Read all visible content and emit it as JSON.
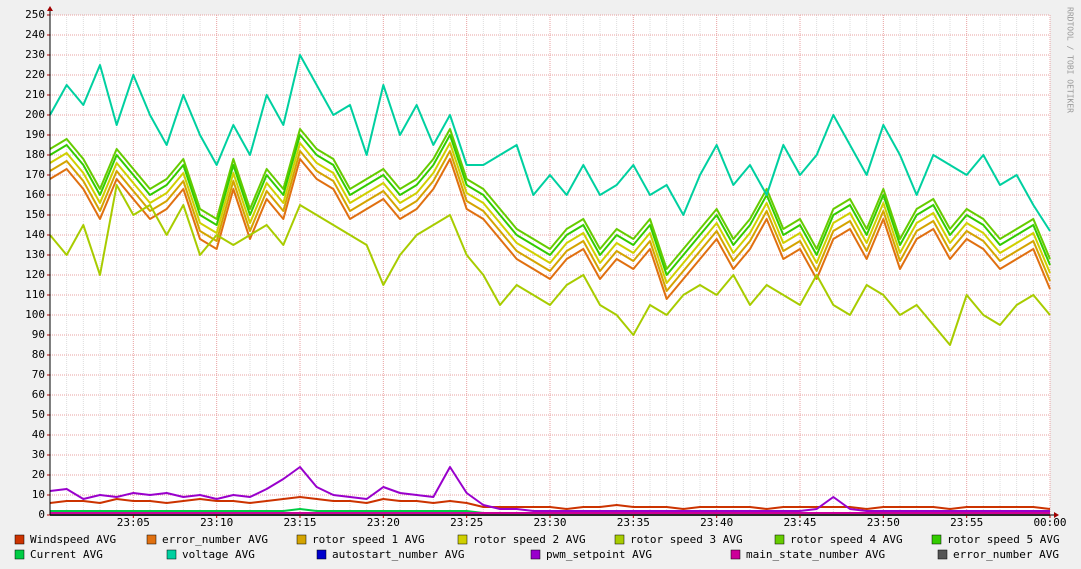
{
  "chart_data": {
    "type": "line",
    "watermark": "RRDTOOL / TOBI OETIKER",
    "categories": [
      null,
      null,
      null,
      null,
      null,
      "23:05",
      null,
      null,
      null,
      null,
      "23:10",
      null,
      null,
      null,
      null,
      "23:15",
      null,
      null,
      null,
      null,
      "23:20",
      null,
      null,
      null,
      null,
      "23:25",
      null,
      null,
      null,
      null,
      "23:30",
      null,
      null,
      null,
      null,
      "23:35",
      null,
      null,
      null,
      null,
      "23:40",
      null,
      null,
      null,
      null,
      "23:45",
      null,
      null,
      null,
      null,
      "23:50",
      null,
      null,
      null,
      null,
      "23:55",
      null,
      null,
      null,
      null,
      "00:00"
    ],
    "ylim": [
      0,
      250
    ],
    "yticks": [
      0,
      10,
      20,
      30,
      40,
      50,
      60,
      70,
      80,
      90,
      100,
      110,
      120,
      130,
      140,
      150,
      160,
      170,
      180,
      190,
      200,
      210,
      220,
      230,
      240,
      250
    ],
    "grid": true,
    "series": [
      {
        "name": "Windspeed AVG",
        "color": "#cc3300",
        "values": [
          6,
          7,
          7,
          6,
          8,
          7,
          7,
          6,
          7,
          8,
          7,
          7,
          6,
          7,
          8,
          9,
          8,
          7,
          7,
          6,
          8,
          7,
          7,
          6,
          7,
          6,
          4,
          4,
          4,
          4,
          4,
          3,
          4,
          4,
          5,
          4,
          4,
          4,
          3,
          4,
          4,
          4,
          4,
          3,
          4,
          4,
          4,
          4,
          4,
          3,
          4,
          4,
          4,
          4,
          3,
          4,
          4,
          4,
          4,
          4,
          3
        ]
      },
      {
        "name": "error_number AVG",
        "color": "#e07010",
        "values": [
          168,
          173,
          163,
          148,
          168,
          158,
          148,
          153,
          163,
          138,
          133,
          163,
          138,
          158,
          148,
          178,
          168,
          163,
          148,
          153,
          158,
          148,
          153,
          163,
          178,
          153,
          148,
          138,
          128,
          123,
          118,
          128,
          133,
          118,
          128,
          123,
          133,
          108,
          118,
          128,
          138,
          123,
          133,
          148,
          128,
          133,
          118,
          138,
          143,
          128,
          148,
          123,
          138,
          143,
          128,
          138,
          133,
          123,
          128,
          133,
          113
        ]
      },
      {
        "name": "rotor speed 1 AVG",
        "color": "#d4a400",
        "values": [
          172,
          177,
          167,
          152,
          172,
          162,
          152,
          157,
          167,
          142,
          137,
          167,
          142,
          162,
          152,
          182,
          172,
          167,
          152,
          157,
          162,
          152,
          157,
          167,
          182,
          157,
          152,
          142,
          132,
          127,
          122,
          132,
          137,
          122,
          132,
          127,
          137,
          112,
          122,
          132,
          142,
          127,
          137,
          152,
          132,
          137,
          122,
          142,
          147,
          132,
          152,
          127,
          142,
          147,
          132,
          142,
          137,
          127,
          132,
          137,
          117
        ]
      },
      {
        "name": "rotor speed 2 AVG",
        "color": "#d0d000",
        "values": [
          176,
          181,
          171,
          156,
          176,
          166,
          156,
          161,
          171,
          146,
          141,
          171,
          146,
          166,
          156,
          186,
          176,
          171,
          156,
          161,
          166,
          156,
          161,
          171,
          186,
          161,
          156,
          146,
          136,
          131,
          126,
          136,
          141,
          126,
          136,
          131,
          141,
          116,
          126,
          136,
          146,
          131,
          141,
          156,
          136,
          141,
          126,
          146,
          151,
          136,
          156,
          131,
          146,
          151,
          136,
          146,
          141,
          131,
          136,
          141,
          121
        ]
      },
      {
        "name": "rotor speed 3 AVG",
        "color": "#a8cc00",
        "values": [
          140,
          130,
          145,
          120,
          165,
          150,
          155,
          140,
          155,
          130,
          140,
          135,
          140,
          145,
          135,
          155,
          150,
          145,
          140,
          135,
          115,
          130,
          140,
          145,
          150,
          130,
          120,
          105,
          115,
          110,
          105,
          115,
          120,
          105,
          100,
          90,
          105,
          100,
          110,
          115,
          110,
          120,
          105,
          115,
          110,
          105,
          120,
          105,
          100,
          115,
          110,
          100,
          105,
          95,
          85,
          110,
          100,
          95,
          105,
          110,
          100
        ]
      },
      {
        "name": "rotor speed 4 AVG",
        "color": "#66cc00",
        "values": [
          183,
          188,
          178,
          163,
          183,
          173,
          163,
          168,
          178,
          153,
          148,
          178,
          153,
          173,
          163,
          193,
          183,
          178,
          163,
          168,
          173,
          163,
          168,
          178,
          193,
          168,
          163,
          153,
          143,
          138,
          133,
          143,
          148,
          133,
          143,
          138,
          148,
          123,
          133,
          143,
          153,
          138,
          148,
          163,
          143,
          148,
          133,
          153,
          158,
          143,
          163,
          138,
          153,
          158,
          143,
          153,
          148,
          138,
          143,
          148,
          128
        ]
      },
      {
        "name": "rotor speed 5 AVG",
        "color": "#33cc00",
        "values": [
          180,
          185,
          175,
          160,
          180,
          170,
          160,
          165,
          175,
          150,
          145,
          175,
          150,
          170,
          160,
          190,
          180,
          175,
          160,
          165,
          170,
          160,
          165,
          175,
          190,
          165,
          160,
          150,
          140,
          135,
          130,
          140,
          145,
          130,
          140,
          135,
          145,
          120,
          130,
          140,
          150,
          135,
          145,
          160,
          140,
          145,
          130,
          150,
          155,
          140,
          160,
          135,
          150,
          155,
          140,
          150,
          145,
          135,
          140,
          145,
          125
        ]
      },
      {
        "name": "Current AVG",
        "color": "#00cc44",
        "values": [
          2,
          2,
          2,
          2,
          2,
          2,
          2,
          2,
          2,
          2,
          2,
          2,
          2,
          2,
          2,
          3,
          2,
          2,
          2,
          2,
          2,
          2,
          2,
          2,
          2,
          2,
          1,
          1,
          1,
          1,
          1,
          1,
          1,
          1,
          1,
          1,
          1,
          1,
          1,
          1,
          1,
          1,
          1,
          1,
          1,
          1,
          1,
          1,
          1,
          1,
          1,
          1,
          1,
          1,
          1,
          1,
          1,
          1,
          1,
          1,
          1
        ]
      },
      {
        "name": "voltage AVG",
        "color": "#00d0a0",
        "values": [
          200,
          215,
          205,
          225,
          195,
          220,
          200,
          185,
          210,
          190,
          175,
          195,
          180,
          210,
          195,
          230,
          215,
          200,
          205,
          180,
          215,
          190,
          205,
          185,
          200,
          175,
          175,
          180,
          185,
          160,
          170,
          160,
          175,
          160,
          165,
          175,
          160,
          165,
          150,
          170,
          185,
          165,
          175,
          160,
          185,
          170,
          180,
          200,
          185,
          170,
          195,
          180,
          160,
          180,
          175,
          170,
          180,
          165,
          170,
          155,
          142
        ]
      },
      {
        "name": "autostart_number AVG",
        "color": "#0000cc",
        "values": [
          0,
          0,
          0,
          0,
          0,
          0,
          0,
          0,
          0,
          0,
          0,
          0,
          0,
          0,
          0,
          0,
          0,
          0,
          0,
          0,
          0,
          0,
          0,
          0,
          0,
          0,
          0,
          0,
          0,
          0,
          0,
          0,
          0,
          0,
          0,
          0,
          0,
          0,
          0,
          0,
          0,
          0,
          0,
          0,
          0,
          0,
          0,
          0,
          0,
          0,
          0,
          0,
          0,
          0,
          0,
          0,
          0,
          0,
          0,
          0,
          0
        ]
      },
      {
        "name": "pwm_setpoint AVG",
        "color": "#9900cc",
        "values": [
          12,
          13,
          8,
          10,
          9,
          11,
          10,
          11,
          9,
          10,
          8,
          10,
          9,
          13,
          18,
          24,
          14,
          10,
          9,
          8,
          14,
          11,
          10,
          9,
          24,
          11,
          5,
          3,
          3,
          2,
          2,
          2,
          2,
          2,
          2,
          2,
          2,
          2,
          2,
          2,
          2,
          2,
          2,
          2,
          2,
          2,
          3,
          9,
          3,
          2,
          2,
          2,
          2,
          2,
          2,
          2,
          2,
          2,
          2,
          2,
          2
        ]
      },
      {
        "name": "main_state_number AVG",
        "color": "#cc0099",
        "values": [
          1,
          1,
          1,
          1,
          1,
          1,
          1,
          1,
          1,
          1,
          1,
          1,
          1,
          1,
          1,
          1,
          1,
          1,
          1,
          1,
          1,
          1,
          1,
          1,
          1,
          1,
          1,
          1,
          1,
          1,
          1,
          1,
          1,
          1,
          1,
          1,
          1,
          1,
          1,
          1,
          1,
          1,
          1,
          1,
          1,
          1,
          1,
          1,
          1,
          1,
          1,
          1,
          1,
          1,
          1,
          1,
          1,
          1,
          1,
          1,
          1
        ]
      },
      {
        "name": "error_number AVG",
        "color": "#555555",
        "values": [
          0,
          0,
          0,
          0,
          0,
          0,
          0,
          0,
          0,
          0,
          0,
          0,
          0,
          0,
          0,
          0,
          0,
          0,
          0,
          0,
          0,
          0,
          0,
          0,
          0,
          0,
          0,
          0,
          0,
          0,
          0,
          0,
          0,
          0,
          0,
          0,
          0,
          0,
          0,
          0,
          0,
          0,
          0,
          0,
          0,
          0,
          0,
          0,
          0,
          0,
          0,
          0,
          0,
          0,
          0,
          0,
          0,
          0,
          0,
          0,
          0
        ]
      }
    ]
  }
}
